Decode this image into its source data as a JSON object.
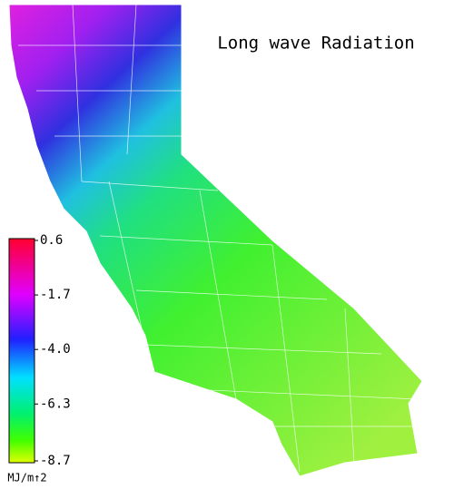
{
  "title": "Long wave Radiation",
  "colorbar": {
    "range": [
      -8.7,
      0.6
    ],
    "ticks": [
      0.6,
      -1.7,
      {
        "value": -4,
        "label": "-4.0"
      },
      -6.3,
      -8.7
    ],
    "unit": "MJ/m↑2"
  }
}
